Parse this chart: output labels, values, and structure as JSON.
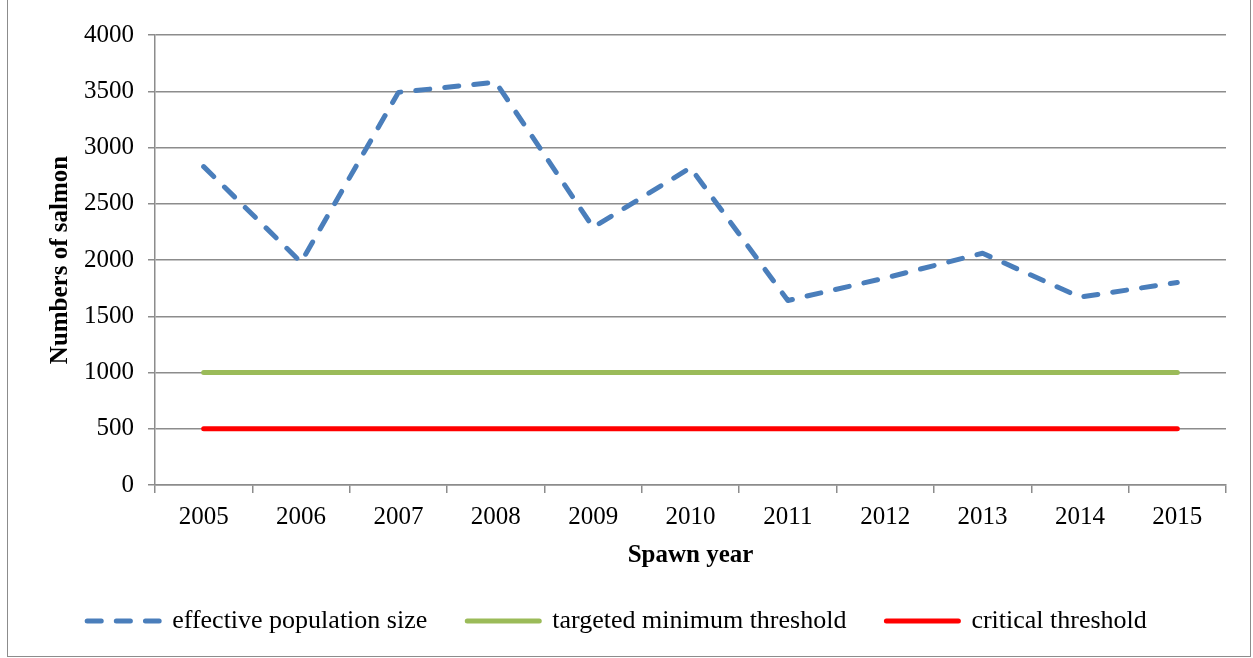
{
  "chart_data": {
    "type": "line",
    "xlabel": "Spawn year",
    "ylabel": "Numbers of salmon",
    "categories": [
      "2005",
      "2006",
      "2007",
      "2008",
      "2009",
      "2010",
      "2011",
      "2012",
      "2013",
      "2014",
      "2015"
    ],
    "series": [
      {
        "name": "effective population size",
        "color": "#4a7ebb",
        "line_style": "dashed",
        "values": [
          2830,
          1980,
          3490,
          3580,
          2290,
          2820,
          1640,
          1840,
          2060,
          1670,
          1800
        ]
      },
      {
        "name": "targeted minimum threshold",
        "color": "#9bbb59",
        "line_style": "solid",
        "values": [
          1000,
          1000,
          1000,
          1000,
          1000,
          1000,
          1000,
          1000,
          1000,
          1000,
          1000
        ]
      },
      {
        "name": "critical threshold",
        "color": "#ff0000",
        "line_style": "solid",
        "values": [
          500,
          500,
          500,
          500,
          500,
          500,
          500,
          500,
          500,
          500,
          500
        ]
      }
    ],
    "ylim": [
      0,
      4000
    ],
    "yticks": [
      0,
      500,
      1000,
      1500,
      2000,
      2500,
      3000,
      3500,
      4000
    ],
    "grid": "y",
    "legend": "bottom",
    "marker": "none"
  }
}
